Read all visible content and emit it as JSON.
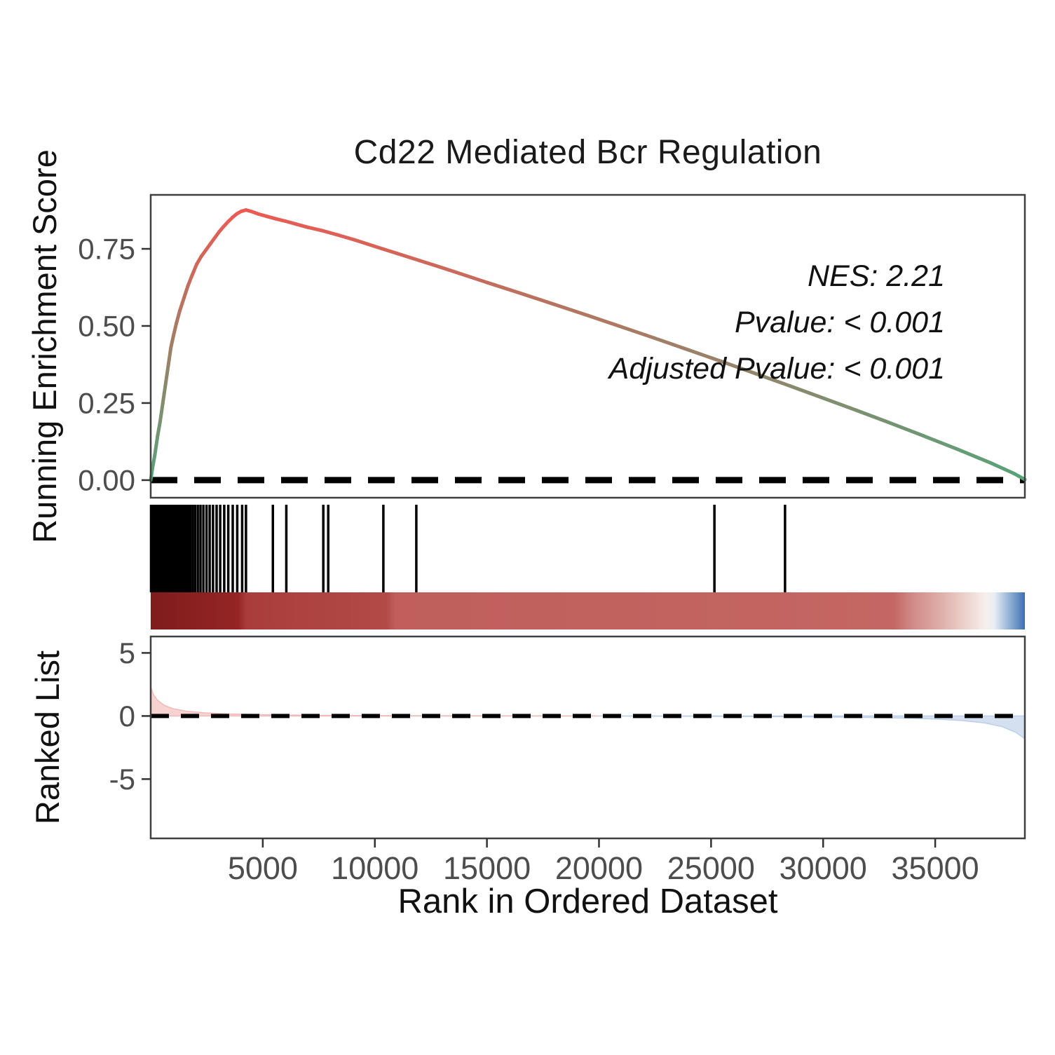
{
  "title": "Cd22 Mediated Bcr Regulation",
  "stats": {
    "nes": "NES: 2.21",
    "pvalue": "Pvalue: < 0.001",
    "adjusted": "Adjusted Pvalue: < 0.001"
  },
  "axis": {
    "x_label": "Rank in Ordered Dataset",
    "y_label_top": "Running Enrichment Score",
    "y_label_bottom": "Ranked List"
  },
  "chart_data": {
    "type": "line",
    "title": "Cd22 Mediated Bcr Regulation",
    "nes": 2.21,
    "pvalue": "< 0.001",
    "adjusted_pvalue": "< 0.001",
    "x_range": [
      0,
      39000
    ],
    "x_ticks": [
      5000,
      10000,
      15000,
      20000,
      25000,
      30000,
      35000
    ],
    "panels": {
      "enrichment": {
        "name": "running_enrichment_score",
        "y_range": [
          -0.057,
          0.925
        ],
        "y_ticks": [
          0,
          0.25,
          0.5,
          0.75
        ],
        "y_tick_labels": [
          "0.00",
          "0.25",
          "0.50",
          "0.75"
        ],
        "zero_line": 0,
        "color_low": "#55a37a",
        "color_high": "#ec5a52",
        "curve": [
          [
            1,
            0.0
          ],
          [
            80,
            0.04
          ],
          [
            180,
            0.08
          ],
          [
            300,
            0.14
          ],
          [
            420,
            0.19
          ],
          [
            540,
            0.25
          ],
          [
            660,
            0.31
          ],
          [
            780,
            0.37
          ],
          [
            900,
            0.43
          ],
          [
            1020,
            0.47
          ],
          [
            1150,
            0.51
          ],
          [
            1300,
            0.55
          ],
          [
            1480,
            0.59
          ],
          [
            1660,
            0.63
          ],
          [
            1850,
            0.665
          ],
          [
            2050,
            0.7
          ],
          [
            2250,
            0.725
          ],
          [
            2450,
            0.745
          ],
          [
            2650,
            0.765
          ],
          [
            2850,
            0.785
          ],
          [
            3050,
            0.805
          ],
          [
            3250,
            0.822
          ],
          [
            3450,
            0.838
          ],
          [
            3650,
            0.852
          ],
          [
            3850,
            0.864
          ],
          [
            4050,
            0.872
          ],
          [
            4250,
            0.876
          ],
          [
            4500,
            0.871
          ],
          [
            4800,
            0.863
          ],
          [
            5200,
            0.855
          ],
          [
            5600,
            0.847
          ],
          [
            6000,
            0.84
          ],
          [
            6500,
            0.83
          ],
          [
            7000,
            0.82
          ],
          [
            7600,
            0.81
          ],
          [
            8300,
            0.796
          ],
          [
            9100,
            0.779
          ],
          [
            10000,
            0.758
          ],
          [
            11000,
            0.735
          ],
          [
            12000,
            0.712
          ],
          [
            13500,
            0.677
          ],
          [
            15000,
            0.641
          ],
          [
            16500,
            0.606
          ],
          [
            18000,
            0.57
          ],
          [
            19500,
            0.534
          ],
          [
            21000,
            0.497
          ],
          [
            22500,
            0.46
          ],
          [
            24000,
            0.422
          ],
          [
            25500,
            0.384
          ],
          [
            27000,
            0.345
          ],
          [
            28500,
            0.306
          ],
          [
            30000,
            0.266
          ],
          [
            31500,
            0.226
          ],
          [
            33000,
            0.185
          ],
          [
            34500,
            0.143
          ],
          [
            36000,
            0.1
          ],
          [
            37500,
            0.055
          ],
          [
            38500,
            0.022
          ],
          [
            39000,
            0.002
          ]
        ]
      },
      "gene_ranks": {
        "ticks": [
          15,
          40,
          70,
          100,
          130,
          165,
          200,
          235,
          275,
          315,
          355,
          400,
          445,
          495,
          545,
          600,
          655,
          715,
          775,
          840,
          905,
          975,
          1050,
          1125,
          1205,
          1290,
          1375,
          1465,
          1560,
          1660,
          1760,
          1870,
          1980,
          2100,
          2220,
          2350,
          2490,
          2630,
          2780,
          2940,
          3100,
          3280,
          3460,
          3660,
          3860,
          4080,
          4250,
          5450,
          6050,
          7700,
          7920,
          10380,
          11850,
          25150,
          28300
        ]
      },
      "colorbar": {
        "stops": [
          {
            "pos": 0.0,
            "color": "#7f1c1c"
          },
          {
            "pos": 0.1,
            "color": "#952525"
          },
          {
            "pos": 0.11,
            "color": "#aa3d3b"
          },
          {
            "pos": 0.27,
            "color": "#b24a48"
          },
          {
            "pos": 0.28,
            "color": "#c05f5c"
          },
          {
            "pos": 0.85,
            "color": "#c46663"
          },
          {
            "pos": 0.87,
            "color": "#d08985"
          },
          {
            "pos": 0.9,
            "color": "#ddaaa5"
          },
          {
            "pos": 0.93,
            "color": "#eccfca"
          },
          {
            "pos": 0.955,
            "color": "#f7efec"
          },
          {
            "pos": 0.965,
            "color": "#e8eef5"
          },
          {
            "pos": 0.98,
            "color": "#9db9da"
          },
          {
            "pos": 0.993,
            "color": "#5f8cc0"
          },
          {
            "pos": 1.0,
            "color": "#3e6da8"
          }
        ]
      },
      "ranked_list": {
        "name": "ranked_list_metric",
        "y_range": [
          -9.7,
          6.3
        ],
        "y_ticks": [
          -5,
          0,
          5
        ],
        "y_tick_labels": [
          "-5",
          "0",
          "5"
        ],
        "zero_line": 0,
        "pos_color": "#f6d3d0",
        "pos_edge": "#eebbb8",
        "neg_color": "#d4e0f0",
        "neg_edge": "#bccfe8",
        "curve": [
          [
            1,
            2.3
          ],
          [
            120,
            1.7
          ],
          [
            300,
            1.25
          ],
          [
            600,
            0.85
          ],
          [
            1000,
            0.58
          ],
          [
            1600,
            0.38
          ],
          [
            2400,
            0.25
          ],
          [
            3500,
            0.16
          ],
          [
            5000,
            0.1
          ],
          [
            7000,
            0.06
          ],
          [
            10000,
            0.03
          ],
          [
            14000,
            0.015
          ],
          [
            18000,
            0.005
          ],
          [
            20000,
            0.0
          ],
          [
            23000,
            -0.01
          ],
          [
            26000,
            -0.03
          ],
          [
            29000,
            -0.06
          ],
          [
            31500,
            -0.1
          ],
          [
            33500,
            -0.16
          ],
          [
            35000,
            -0.24
          ],
          [
            36200,
            -0.36
          ],
          [
            37200,
            -0.55
          ],
          [
            38000,
            -0.85
          ],
          [
            38600,
            -1.3
          ],
          [
            39000,
            -1.8
          ]
        ]
      }
    },
    "style": {
      "tick_label_color": "#4d4d4d",
      "axis_color": "#333333",
      "panel_border_color": "#404040",
      "dash_color": "#000000",
      "rug_color": "#000000"
    }
  }
}
